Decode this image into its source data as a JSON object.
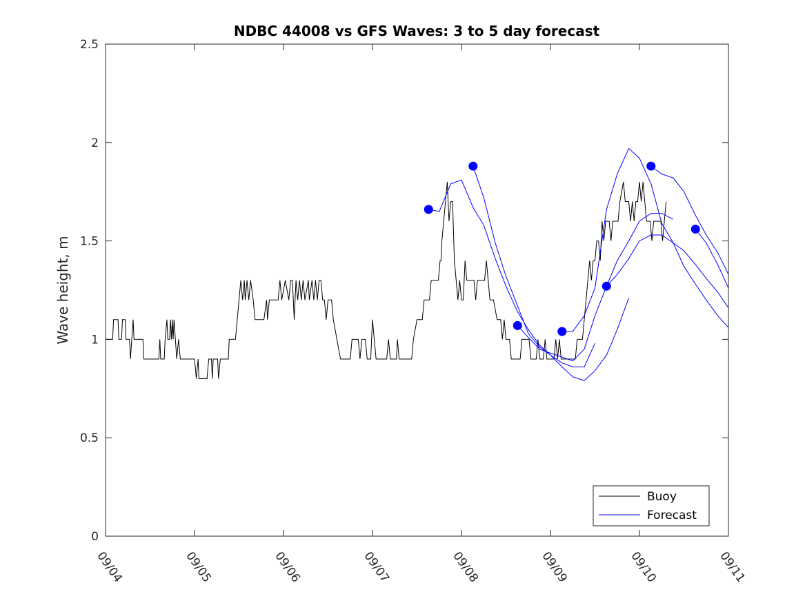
{
  "chart_data": {
    "type": "line",
    "title": "NDBC 44008 vs GFS Waves: 3 to 5 day forecast",
    "xlabel": "",
    "ylabel": "Wave height, m",
    "xlim": [
      0,
      7
    ],
    "ylim": [
      0,
      2.5
    ],
    "x_ticks": [
      {
        "value": 0,
        "label": "09/04"
      },
      {
        "value": 1,
        "label": "09/05"
      },
      {
        "value": 2,
        "label": "09/06"
      },
      {
        "value": 3,
        "label": "09/07"
      },
      {
        "value": 4,
        "label": "09/08"
      },
      {
        "value": 5,
        "label": "09/09"
      },
      {
        "value": 6,
        "label": "09/10"
      },
      {
        "value": 7,
        "label": "09/11"
      }
    ],
    "y_ticks": [
      {
        "value": 0,
        "label": "0"
      },
      {
        "value": 0.5,
        "label": "0.5"
      },
      {
        "value": 1,
        "label": "1"
      },
      {
        "value": 1.5,
        "label": "1.5"
      },
      {
        "value": 2,
        "label": "2"
      },
      {
        "value": 2.5,
        "label": "2.5"
      }
    ],
    "legend": {
      "position": "bottom-right",
      "entries": [
        "Buoy",
        "Forecast"
      ]
    },
    "colors": {
      "buoy": "#000000",
      "forecast": "#0000ff",
      "axis": "#262626"
    },
    "buoy": {
      "name": "Buoy",
      "points": [
        [
          0.0,
          1.0
        ],
        [
          0.08,
          1.0
        ],
        [
          0.09,
          1.1
        ],
        [
          0.14,
          1.1
        ],
        [
          0.15,
          1.0
        ],
        [
          0.18,
          1.0
        ],
        [
          0.19,
          1.1
        ],
        [
          0.22,
          1.1
        ],
        [
          0.23,
          1.0
        ],
        [
          0.27,
          1.0
        ],
        [
          0.28,
          0.9
        ],
        [
          0.31,
          1.1
        ],
        [
          0.32,
          1.0
        ],
        [
          0.42,
          1.0
        ],
        [
          0.43,
          0.9
        ],
        [
          0.6,
          0.9
        ],
        [
          0.61,
          1.0
        ],
        [
          0.62,
          0.9
        ],
        [
          0.66,
          0.9
        ],
        [
          0.67,
          1.0
        ],
        [
          0.69,
          1.1
        ],
        [
          0.7,
          1.0
        ],
        [
          0.72,
          1.0
        ],
        [
          0.73,
          1.1
        ],
        [
          0.74,
          1.0
        ],
        [
          0.75,
          1.1
        ],
        [
          0.76,
          1.0
        ],
        [
          0.77,
          1.1
        ],
        [
          0.8,
          0.9
        ],
        [
          0.82,
          1.0
        ],
        [
          0.84,
          0.9
        ],
        [
          0.9,
          0.9
        ],
        [
          0.98,
          0.9
        ],
        [
          1.0,
          0.9
        ],
        [
          1.02,
          0.8
        ],
        [
          1.04,
          0.9
        ],
        [
          1.05,
          0.8
        ],
        [
          1.14,
          0.8
        ],
        [
          1.16,
          0.9
        ],
        [
          1.19,
          0.9
        ],
        [
          1.2,
          0.8
        ],
        [
          1.21,
          0.9
        ],
        [
          1.26,
          0.9
        ],
        [
          1.27,
          0.8
        ],
        [
          1.29,
          0.9
        ],
        [
          1.38,
          0.9
        ],
        [
          1.39,
          1.0
        ],
        [
          1.46,
          1.0
        ],
        [
          1.48,
          1.1
        ],
        [
          1.52,
          1.3
        ],
        [
          1.54,
          1.2
        ],
        [
          1.56,
          1.3
        ],
        [
          1.57,
          1.2
        ],
        [
          1.59,
          1.3
        ],
        [
          1.61,
          1.2
        ],
        [
          1.63,
          1.3
        ],
        [
          1.66,
          1.2
        ],
        [
          1.68,
          1.1
        ],
        [
          1.78,
          1.1
        ],
        [
          1.81,
          1.2
        ],
        [
          1.82,
          1.1
        ],
        [
          1.84,
          1.2
        ],
        [
          1.94,
          1.2
        ],
        [
          1.96,
          1.3
        ],
        [
          1.98,
          1.2
        ],
        [
          2.02,
          1.3
        ],
        [
          2.06,
          1.2
        ],
        [
          2.08,
          1.3
        ],
        [
          2.1,
          1.3
        ],
        [
          2.12,
          1.1
        ],
        [
          2.14,
          1.3
        ],
        [
          2.16,
          1.2
        ],
        [
          2.18,
          1.3
        ],
        [
          2.2,
          1.2
        ],
        [
          2.22,
          1.3
        ],
        [
          2.24,
          1.2
        ],
        [
          2.28,
          1.3
        ],
        [
          2.29,
          1.2
        ],
        [
          2.32,
          1.3
        ],
        [
          2.34,
          1.2
        ],
        [
          2.36,
          1.3
        ],
        [
          2.38,
          1.2
        ],
        [
          2.4,
          1.3
        ],
        [
          2.42,
          1.3
        ],
        [
          2.44,
          1.2
        ],
        [
          2.46,
          1.2
        ],
        [
          2.48,
          1.1
        ],
        [
          2.5,
          1.2
        ],
        [
          2.54,
          1.2
        ],
        [
          2.56,
          1.1
        ],
        [
          2.6,
          1.0
        ],
        [
          2.64,
          0.9
        ],
        [
          2.75,
          0.9
        ],
        [
          2.77,
          1.0
        ],
        [
          2.84,
          1.0
        ],
        [
          2.86,
          0.9
        ],
        [
          2.88,
          1.0
        ],
        [
          2.92,
          1.0
        ],
        [
          2.94,
          0.9
        ],
        [
          2.98,
          0.9
        ],
        [
          3.0,
          1.1
        ],
        [
          3.02,
          1.0
        ],
        [
          3.04,
          0.9
        ],
        [
          3.16,
          0.9
        ],
        [
          3.18,
          1.0
        ],
        [
          3.2,
          0.9
        ],
        [
          3.27,
          0.9
        ],
        [
          3.28,
          1.0
        ],
        [
          3.3,
          0.9
        ],
        [
          3.44,
          0.9
        ],
        [
          3.46,
          1.0
        ],
        [
          3.5,
          1.1
        ],
        [
          3.56,
          1.1
        ],
        [
          3.58,
          1.2
        ],
        [
          3.64,
          1.2
        ],
        [
          3.66,
          1.3
        ],
        [
          3.74,
          1.3
        ],
        [
          3.76,
          1.4
        ],
        [
          3.77,
          1.4
        ],
        [
          3.78,
          1.5
        ],
        [
          3.8,
          1.6
        ],
        [
          3.82,
          1.7
        ],
        [
          3.84,
          1.8
        ],
        [
          3.86,
          1.6
        ],
        [
          3.88,
          1.7
        ],
        [
          3.9,
          1.7
        ],
        [
          3.92,
          1.4
        ],
        [
          3.94,
          1.3
        ],
        [
          3.96,
          1.2
        ],
        [
          3.98,
          1.3
        ],
        [
          4.0,
          1.2
        ],
        [
          4.02,
          1.2
        ],
        [
          4.04,
          1.4
        ],
        [
          4.06,
          1.3
        ],
        [
          4.14,
          1.3
        ],
        [
          4.16,
          1.2
        ],
        [
          4.18,
          1.3
        ],
        [
          4.26,
          1.3
        ],
        [
          4.28,
          1.4
        ],
        [
          4.3,
          1.3
        ],
        [
          4.32,
          1.2
        ],
        [
          4.36,
          1.2
        ],
        [
          4.4,
          1.1
        ],
        [
          4.44,
          1.1
        ],
        [
          4.46,
          1.0
        ],
        [
          4.48,
          1.1
        ],
        [
          4.5,
          1.0
        ],
        [
          4.54,
          1.0
        ],
        [
          4.56,
          0.9
        ],
        [
          4.66,
          0.9
        ],
        [
          4.68,
          1.0
        ],
        [
          4.76,
          1.0
        ],
        [
          4.78,
          0.9
        ],
        [
          4.84,
          0.9
        ],
        [
          4.86,
          1.0
        ],
        [
          4.88,
          0.9
        ],
        [
          4.92,
          0.9
        ],
        [
          4.94,
          1.0
        ],
        [
          4.96,
          0.9
        ],
        [
          5.04,
          0.9
        ],
        [
          5.06,
          1.0
        ],
        [
          5.08,
          0.9
        ],
        [
          5.1,
          1.0
        ],
        [
          5.12,
          0.9
        ],
        [
          5.16,
          0.9
        ],
        [
          5.18,
          0.9
        ],
        [
          5.28,
          0.9
        ],
        [
          5.3,
          1.0
        ],
        [
          5.36,
          1.0
        ],
        [
          5.38,
          1.1
        ],
        [
          5.4,
          1.2
        ],
        [
          5.42,
          1.3
        ],
        [
          5.44,
          1.4
        ],
        [
          5.46,
          1.3
        ],
        [
          5.48,
          1.4
        ],
        [
          5.5,
          1.4
        ],
        [
          5.52,
          1.5
        ],
        [
          5.54,
          1.5
        ],
        [
          5.56,
          1.4
        ],
        [
          5.58,
          1.6
        ],
        [
          5.6,
          1.5
        ],
        [
          5.62,
          1.6
        ],
        [
          5.66,
          1.6
        ],
        [
          5.68,
          1.5
        ],
        [
          5.7,
          1.6
        ],
        [
          5.76,
          1.6
        ],
        [
          5.78,
          1.7
        ],
        [
          5.82,
          1.8
        ],
        [
          5.84,
          1.7
        ],
        [
          5.88,
          1.7
        ],
        [
          5.9,
          1.6
        ],
        [
          5.92,
          1.7
        ],
        [
          5.94,
          1.6
        ],
        [
          5.96,
          1.7
        ],
        [
          5.98,
          1.7
        ],
        [
          6.0,
          1.8
        ],
        [
          6.02,
          1.7
        ],
        [
          6.04,
          1.8
        ],
        [
          6.06,
          1.7
        ],
        [
          6.08,
          1.6
        ],
        [
          6.12,
          1.6
        ],
        [
          6.14,
          1.5
        ],
        [
          6.16,
          1.6
        ],
        [
          6.24,
          1.6
        ],
        [
          6.26,
          1.5
        ],
        [
          6.28,
          1.6
        ],
        [
          6.3,
          1.7
        ]
      ]
    },
    "forecast": {
      "name": "Forecast",
      "series": [
        {
          "points": [
            [
              3.63,
              1.66
            ],
            [
              3.75,
              1.65
            ],
            [
              3.88,
              1.79
            ],
            [
              4.0,
              1.81
            ],
            [
              4.13,
              1.67
            ],
            [
              4.25,
              1.58
            ],
            [
              4.38,
              1.41
            ],
            [
              4.5,
              1.27
            ],
            [
              4.63,
              1.14
            ],
            [
              4.75,
              1.05
            ],
            [
              4.88,
              0.97
            ],
            [
              5.0,
              0.92
            ],
            [
              5.13,
              0.86
            ],
            [
              5.25,
              0.81
            ],
            [
              5.38,
              0.79
            ],
            [
              5.5,
              0.84
            ],
            [
              5.63,
              0.92
            ],
            [
              5.75,
              1.05
            ],
            [
              5.88,
              1.21
            ]
          ]
        },
        {
          "points": [
            [
              4.13,
              1.88
            ],
            [
              4.25,
              1.72
            ],
            [
              4.38,
              1.49
            ],
            [
              4.5,
              1.32
            ],
            [
              4.63,
              1.17
            ],
            [
              4.75,
              1.03
            ],
            [
              4.88,
              0.96
            ],
            [
              5.0,
              0.92
            ],
            [
              5.13,
              0.88
            ],
            [
              5.25,
              0.86
            ],
            [
              5.38,
              0.86
            ],
            [
              5.5,
              0.98
            ]
          ]
        },
        {
          "points": [
            [
              4.63,
              1.07
            ],
            [
              4.75,
              1.01
            ],
            [
              4.88,
              0.95
            ],
            [
              5.0,
              0.93
            ],
            [
              5.13,
              0.91
            ],
            [
              5.25,
              0.89
            ],
            [
              5.38,
              0.95
            ],
            [
              5.5,
              1.12
            ],
            [
              5.63,
              1.27
            ],
            [
              5.75,
              1.4
            ],
            [
              5.88,
              1.5
            ],
            [
              6.0,
              1.6
            ],
            [
              6.13,
              1.64
            ],
            [
              6.25,
              1.64
            ],
            [
              6.38,
              1.61
            ]
          ]
        },
        {
          "points": [
            [
              5.13,
              1.04
            ],
            [
              5.25,
              1.04
            ],
            [
              5.38,
              1.12
            ],
            [
              5.5,
              1.26
            ],
            [
              5.63,
              1.66
            ],
            [
              5.75,
              1.84
            ],
            [
              5.88,
              1.97
            ],
            [
              6.0,
              1.92
            ],
            [
              6.13,
              1.79
            ],
            [
              6.25,
              1.59
            ],
            [
              6.38,
              1.49
            ],
            [
              6.5,
              1.37
            ],
            [
              6.63,
              1.28
            ],
            [
              6.75,
              1.2
            ],
            [
              6.88,
              1.12
            ],
            [
              7.0,
              1.06
            ]
          ]
        },
        {
          "points": [
            [
              5.63,
              1.27
            ],
            [
              5.75,
              1.33
            ],
            [
              5.88,
              1.41
            ],
            [
              6.0,
              1.5
            ],
            [
              6.13,
              1.53
            ],
            [
              6.25,
              1.53
            ],
            [
              6.38,
              1.49
            ],
            [
              6.5,
              1.45
            ],
            [
              6.63,
              1.38
            ],
            [
              6.75,
              1.31
            ],
            [
              6.88,
              1.24
            ],
            [
              7.0,
              1.16
            ]
          ]
        },
        {
          "points": [
            [
              6.13,
              1.88
            ],
            [
              6.25,
              1.84
            ],
            [
              6.38,
              1.82
            ],
            [
              6.5,
              1.75
            ],
            [
              6.63,
              1.63
            ],
            [
              6.75,
              1.53
            ],
            [
              6.88,
              1.44
            ],
            [
              7.0,
              1.33
            ]
          ]
        },
        {
          "points": [
            [
              6.63,
              1.56
            ],
            [
              6.75,
              1.49
            ],
            [
              6.88,
              1.38
            ],
            [
              7.0,
              1.26
            ]
          ]
        }
      ],
      "markers": [
        [
          3.63,
          1.66
        ],
        [
          4.13,
          1.88
        ],
        [
          4.63,
          1.07
        ],
        [
          5.13,
          1.04
        ],
        [
          5.63,
          1.27
        ],
        [
          6.13,
          1.88
        ],
        [
          6.63,
          1.56
        ]
      ]
    }
  }
}
